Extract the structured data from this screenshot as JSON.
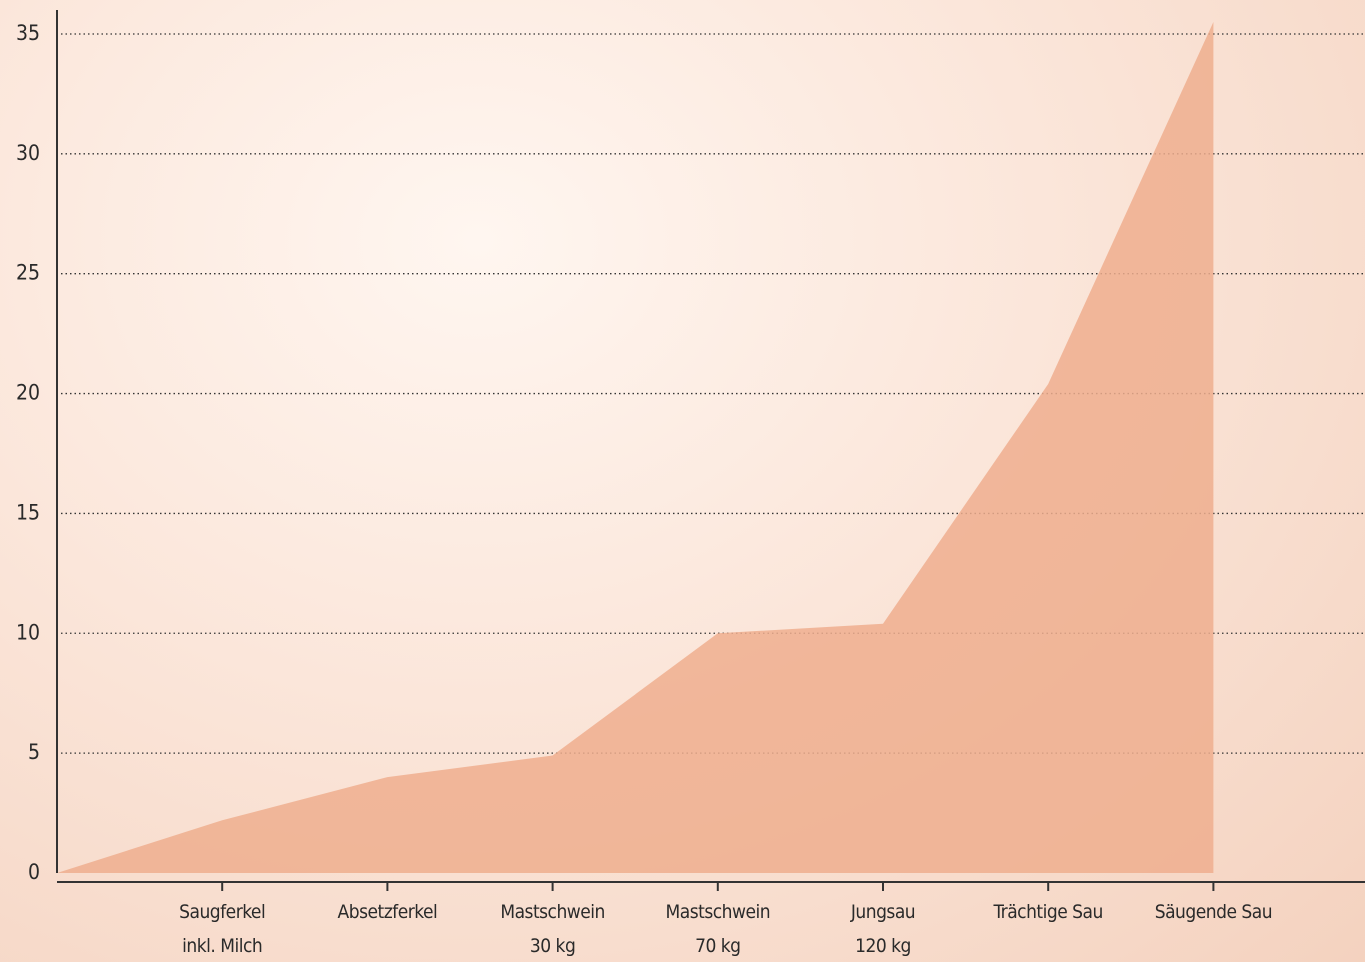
{
  "chart_data": {
    "type": "area",
    "categories": [
      null,
      "Saugferkel\ninkl. Milch",
      "Absetzferkel",
      "Mastschwein\n30 kg",
      "Mastschwein\n70 kg",
      "Jungsau\n120 kg",
      "Trächtige Sau",
      "Säugende Sau"
    ],
    "values": [
      0,
      2.2,
      4,
      4.9,
      10,
      10.4,
      20.4,
      35.5
    ],
    "color": "#eeae8e",
    "ylim": [
      0,
      36
    ],
    "yticks": [
      0,
      5,
      10,
      15,
      20,
      25,
      30,
      35
    ],
    "grid": true
  }
}
